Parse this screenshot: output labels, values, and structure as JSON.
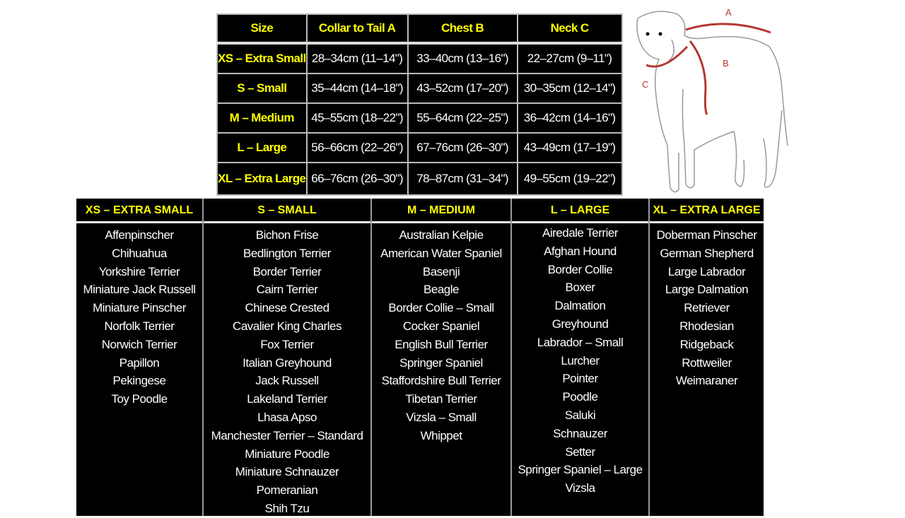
{
  "size_table": {
    "headers": [
      "Size",
      "Collar to Tail  A",
      "Chest  B",
      "Neck  C"
    ],
    "rows": [
      [
        "XS – Extra Small",
        "28–34cm (11–14\")",
        "33–40cm (13–16\")",
        "22–27cm (9–11\")"
      ],
      [
        "S – Small",
        "35–44cm (14–18\")",
        "43–52cm (17–20\")",
        "30–35cm (12–14\")"
      ],
      [
        "M – Medium",
        "45–55cm (18–22\")",
        "55–64cm (22–25\")",
        "36–42cm (14–16\")"
      ],
      [
        "L – Large",
        "56–66cm (22–26\")",
        "67–76cm (26–30\")",
        "43–49cm (17–19\")"
      ],
      [
        "XL – Extra Large",
        "66–76cm (26–30\")",
        "78–87cm (31–34\")",
        "49–55cm (19–22\")"
      ]
    ]
  },
  "diagram": {
    "labels": [
      "A",
      "B",
      "C"
    ],
    "arrow_color": "#b5362e"
  },
  "breeds": [
    {
      "title": "XS – EXTRA SMALL",
      "items": [
        "Affenpinscher",
        "Chihuahua",
        "Yorkshire Terrier",
        "Miniature Jack Russell",
        "Miniature Pinscher",
        "Norfolk Terrier",
        "Norwich Terrier",
        "Papillon",
        "Pekingese",
        "Toy Poodle"
      ]
    },
    {
      "title": "S – SMALL",
      "items": [
        "Bichon Frise",
        "Bedlington Terrier",
        "Border Terrier",
        "Cairn Terrier",
        "Chinese Crested",
        "Cavalier King Charles",
        "Fox Terrier",
        "Italian Greyhound",
        "Jack Russell",
        "Lakeland Terrier",
        "Lhasa Apso",
        "Manchester Terrier – Standard",
        "Miniature Poodle",
        "Miniature Schnauzer",
        "Pomeranian",
        "Shih Tzu"
      ]
    },
    {
      "title": "M – MEDIUM",
      "items": [
        "Australian Kelpie",
        "American Water Spaniel",
        "Basenji",
        "Beagle",
        "Border Collie – Small",
        "Cocker Spaniel",
        "English Bull Terrier",
        "Springer Spaniel",
        "Staffordshire Bull Terrier",
        "Tibetan Terrier",
        "Vizsla – Small",
        "Whippet"
      ]
    },
    {
      "title": "L – LARGE",
      "items": [
        "Airedale Terrier",
        "Afghan Hound",
        "Border Collie",
        "Boxer",
        "Dalmation",
        "Greyhound",
        "Labrador – Small",
        "Lurcher",
        "Pointer",
        "Poodle",
        "Saluki",
        "Schnauzer",
        "Setter",
        "Springer Spaniel – Large",
        "Vizsla"
      ]
    },
    {
      "title": "XL – EXTRA LARGE",
      "items": [
        "Doberman Pinscher",
        "German Shepherd",
        "Large Labrador",
        "Large Dalmation",
        "Retriever",
        "Rhodesian",
        "Ridgeback",
        "Rottweiler",
        "Weimaraner"
      ]
    }
  ],
  "colors": {
    "header_text": "#ffff00",
    "background": "#000000",
    "text": "#ffffff"
  }
}
